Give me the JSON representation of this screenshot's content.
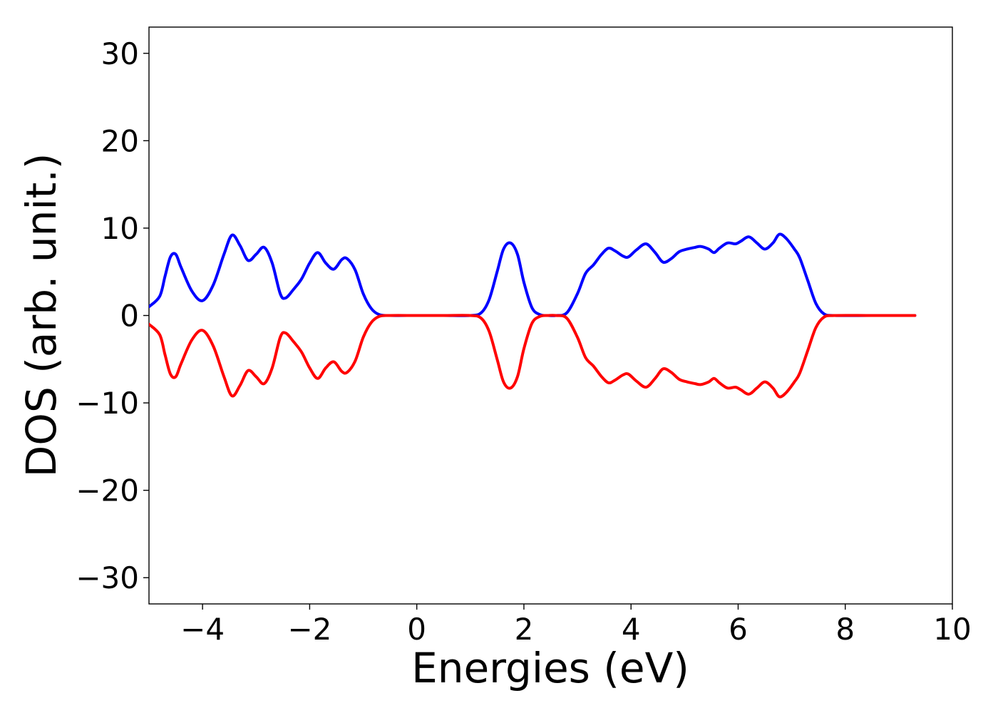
{
  "chart_data": {
    "type": "line",
    "xlabel": "Energies (eV)",
    "ylabel": "DOS (arb. unit.)",
    "xlim": [
      -5,
      10
    ],
    "ylim": [
      -33,
      33
    ],
    "x_ticks": [
      -4,
      -2,
      0,
      2,
      4,
      6,
      8,
      10
    ],
    "x_tick_labels": [
      "−4",
      "−2",
      "0",
      "2",
      "4",
      "6",
      "8",
      "10"
    ],
    "y_ticks": [
      30,
      20,
      10,
      0,
      -10,
      -20,
      -30
    ],
    "y_tick_labels": [
      "30",
      "20",
      "10",
      "0",
      "−10",
      "−20",
      "−30"
    ],
    "grid": false,
    "legend": "none",
    "series": [
      {
        "color": "#0000ff",
        "x": [
          -5.0,
          -4.8,
          -4.7,
          -4.6,
          -4.5,
          -4.4,
          -4.2,
          -4.0,
          -3.8,
          -3.6,
          -3.45,
          -3.3,
          -3.15,
          -3.0,
          -2.85,
          -2.7,
          -2.55,
          -2.45,
          -2.3,
          -2.15,
          -2.0,
          -1.85,
          -1.7,
          -1.55,
          -1.4,
          -1.3,
          -1.15,
          -1.0,
          -0.85,
          -0.7,
          -0.5,
          0.0,
          0.5,
          1.0,
          1.2,
          1.35,
          1.5,
          1.62,
          1.75,
          1.88,
          2.0,
          2.15,
          2.3,
          2.45,
          2.6,
          2.8,
          3.0,
          3.15,
          3.3,
          3.45,
          3.58,
          3.7,
          3.85,
          3.95,
          4.1,
          4.28,
          4.45,
          4.6,
          4.75,
          4.9,
          5.05,
          5.2,
          5.3,
          5.45,
          5.55,
          5.65,
          5.8,
          5.95,
          6.05,
          6.2,
          6.35,
          6.5,
          6.65,
          6.77,
          6.9,
          7.05,
          7.15,
          7.3,
          7.45,
          7.6,
          7.8,
          8.5,
          9.3
        ],
        "y": [
          1.0,
          2.2,
          4.5,
          6.7,
          7.0,
          5.5,
          2.8,
          1.7,
          3.5,
          7.0,
          9.2,
          8.0,
          6.3,
          7.0,
          7.8,
          6.0,
          2.5,
          2.0,
          3.0,
          4.2,
          6.0,
          7.2,
          6.0,
          5.3,
          6.4,
          6.5,
          5.2,
          2.5,
          0.8,
          0.1,
          0.0,
          0.0,
          0.0,
          0.0,
          0.3,
          1.8,
          5.0,
          7.6,
          8.3,
          7.0,
          3.8,
          0.9,
          0.1,
          0.0,
          0.0,
          0.3,
          2.5,
          4.8,
          5.8,
          7.0,
          7.7,
          7.4,
          6.8,
          6.7,
          7.5,
          8.2,
          7.2,
          6.1,
          6.5,
          7.3,
          7.6,
          7.8,
          7.9,
          7.6,
          7.2,
          7.7,
          8.3,
          8.2,
          8.5,
          9.0,
          8.3,
          7.6,
          8.3,
          9.3,
          8.8,
          7.6,
          6.6,
          4.0,
          1.4,
          0.2,
          0.0,
          0.0,
          0.0
        ]
      },
      {
        "color": "#ff0000",
        "x": [
          -5.0,
          -4.8,
          -4.7,
          -4.6,
          -4.5,
          -4.4,
          -4.2,
          -4.0,
          -3.8,
          -3.6,
          -3.45,
          -3.3,
          -3.15,
          -3.0,
          -2.85,
          -2.7,
          -2.55,
          -2.45,
          -2.3,
          -2.15,
          -2.0,
          -1.85,
          -1.7,
          -1.55,
          -1.4,
          -1.3,
          -1.15,
          -1.0,
          -0.85,
          -0.7,
          -0.5,
          0.0,
          0.5,
          1.0,
          1.2,
          1.35,
          1.5,
          1.62,
          1.75,
          1.88,
          2.0,
          2.15,
          2.3,
          2.45,
          2.6,
          2.8,
          3.0,
          3.15,
          3.3,
          3.45,
          3.58,
          3.7,
          3.85,
          3.95,
          4.1,
          4.28,
          4.45,
          4.6,
          4.75,
          4.9,
          5.05,
          5.2,
          5.3,
          5.45,
          5.55,
          5.65,
          5.8,
          5.95,
          6.05,
          6.2,
          6.35,
          6.5,
          6.65,
          6.77,
          6.9,
          7.05,
          7.15,
          7.3,
          7.45,
          7.6,
          7.8,
          8.5,
          9.3
        ],
        "y": [
          -1.0,
          -2.2,
          -4.5,
          -6.7,
          -7.0,
          -5.5,
          -2.8,
          -1.7,
          -3.5,
          -7.0,
          -9.2,
          -8.0,
          -6.3,
          -7.0,
          -7.8,
          -6.0,
          -2.5,
          -2.0,
          -3.0,
          -4.2,
          -6.0,
          -7.2,
          -6.0,
          -5.3,
          -6.4,
          -6.5,
          -5.2,
          -2.5,
          -0.8,
          -0.1,
          0.0,
          0.0,
          0.0,
          0.0,
          -0.3,
          -1.8,
          -5.0,
          -7.6,
          -8.3,
          -7.0,
          -3.8,
          -0.9,
          -0.1,
          0.0,
          0.0,
          -0.3,
          -2.5,
          -4.8,
          -5.8,
          -7.0,
          -7.7,
          -7.4,
          -6.8,
          -6.7,
          -7.5,
          -8.2,
          -7.2,
          -6.1,
          -6.5,
          -7.3,
          -7.6,
          -7.8,
          -7.9,
          -7.6,
          -7.2,
          -7.7,
          -8.3,
          -8.2,
          -8.5,
          -9.0,
          -8.3,
          -7.6,
          -8.3,
          -9.3,
          -8.8,
          -7.6,
          -6.6,
          -4.0,
          -1.4,
          -0.2,
          0.0,
          0.0,
          0.0
        ]
      }
    ]
  }
}
